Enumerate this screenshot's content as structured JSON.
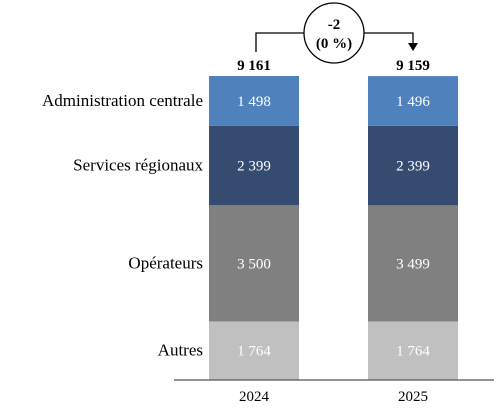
{
  "chart_data": {
    "type": "bar",
    "stacked": true,
    "categories": [
      "2024",
      "2025"
    ],
    "series": [
      {
        "name": "Autres",
        "values": [
          1764,
          1764
        ],
        "color": "#c0c0c0"
      },
      {
        "name": "Opérateurs",
        "values": [
          3500,
          3499
        ],
        "color": "#808080"
      },
      {
        "name": "Services régionaux",
        "values": [
          2399,
          2399
        ],
        "color": "#354c70"
      },
      {
        "name": "Administration centrale",
        "values": [
          1498,
          1496
        ],
        "color": "#4f81bd"
      }
    ],
    "totals": [
      "9 161",
      "9 159"
    ],
    "value_labels": [
      [
        "1 764",
        "1 764"
      ],
      [
        "3 500",
        "3 499"
      ],
      [
        "2 399",
        "2 399"
      ],
      [
        "1 498",
        "1 496"
      ]
    ],
    "change": {
      "value": "-2",
      "percent": "(0 %)"
    },
    "legend_placement": "left, inline with segments",
    "grid": false
  }
}
